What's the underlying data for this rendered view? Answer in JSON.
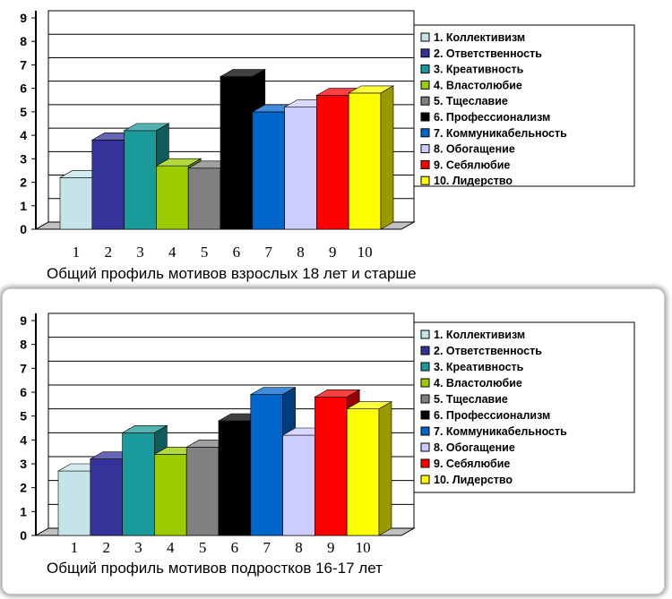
{
  "chart_data": [
    {
      "type": "bar",
      "title": "",
      "caption": "Общий профиль мотивов взрослых 18 лет и старше",
      "categories": [
        "1",
        "2",
        "3",
        "4",
        "5",
        "6",
        "7",
        "8",
        "9",
        "10"
      ],
      "values": [
        2.2,
        3.8,
        4.2,
        2.7,
        2.6,
        6.5,
        5.0,
        5.2,
        5.7,
        5.8
      ],
      "ylim": [
        0,
        9
      ],
      "yticks": [
        "0",
        "1",
        "2",
        "3",
        "4",
        "5",
        "6",
        "7",
        "8",
        "9"
      ],
      "grid": true,
      "legend_position": "right",
      "legend": [
        "1. Коллективизм",
        "2. Ответственность",
        "3. Креативность",
        "4. Властолюбие",
        "5. Тщеславие",
        "6. Профессионализм",
        "7. Коммуникабельность",
        "8. Обогащение",
        "9. Себялюбие",
        "10. Лидерство"
      ]
    },
    {
      "type": "bar",
      "title": "",
      "caption": "Общий профиль мотивов подростков 16-17 лет",
      "categories": [
        "1",
        "2",
        "3",
        "4",
        "5",
        "6",
        "7",
        "8",
        "9",
        "10"
      ],
      "values": [
        2.7,
        3.2,
        4.3,
        3.4,
        3.7,
        4.8,
        5.9,
        4.2,
        5.8,
        5.3
      ],
      "ylim": [
        0,
        9
      ],
      "yticks": [
        "0",
        "1",
        "2",
        "3",
        "4",
        "5",
        "6",
        "7",
        "8",
        "9"
      ],
      "grid": true,
      "legend_position": "right",
      "legend": [
        "1. Коллективизм",
        "2. Ответственность",
        "3. Креативность",
        "4. Властолюбие",
        "5. Тщеславие",
        "6. Профессионализм",
        "7. Коммуникабельность",
        "8. Обогащение",
        "9. Себялюбие",
        "10. Лидерство"
      ]
    }
  ],
  "colors": [
    "#c4e4e8",
    "#33339a",
    "#1a9a9a",
    "#9acc00",
    "#808080",
    "#000000",
    "#0066cc",
    "#ccccff",
    "#ff0000",
    "#ffff00"
  ]
}
